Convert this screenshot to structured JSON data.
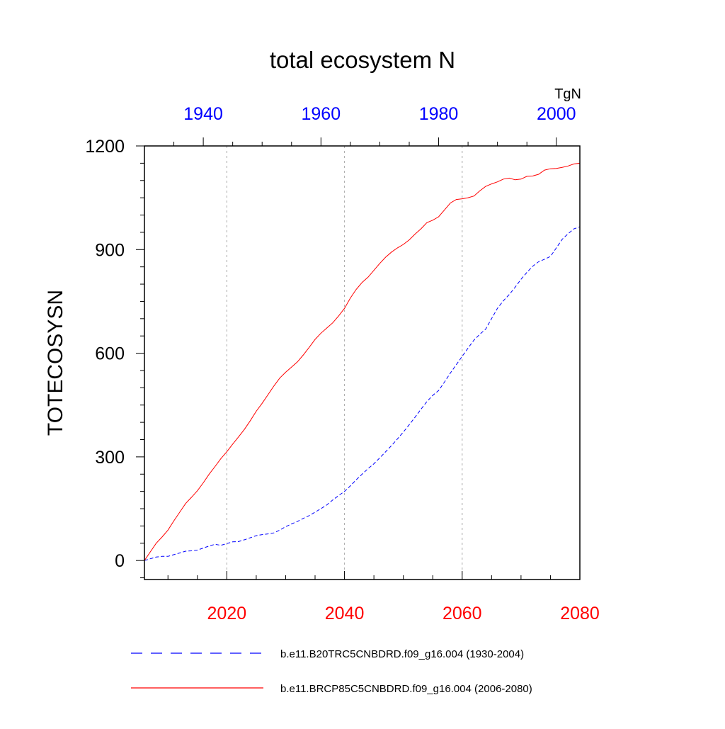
{
  "chart_data": {
    "type": "line",
    "title": "total ecosystem N",
    "units_label": "TgN",
    "ylabel": "TOTECOSYSN",
    "ylim": [
      -55,
      1200
    ],
    "y_ticks": [
      0,
      300,
      600,
      900,
      1200
    ],
    "y_minor_step": 50,
    "grid": "dotted vertical at major bottom-axis ticks",
    "bottom_axis": {
      "xlim": [
        2006,
        2080
      ],
      "ticks": [
        2020,
        2040,
        2060,
        2080
      ],
      "minor_step": 5,
      "color": "#ff0000"
    },
    "top_axis": {
      "xlim": [
        1930,
        2004
      ],
      "ticks": [
        1940,
        1960,
        1980,
        2000
      ],
      "minor_step": 5,
      "color": "#0000ff"
    },
    "series": [
      {
        "name": "b.e11.B20TRC5CNBDRD.f09_g16.004 (1930-2004)",
        "axis": "top",
        "color": "#0000ff",
        "style": "dashed",
        "x": [
          1930,
          1931,
          1932,
          1933,
          1934,
          1935,
          1936,
          1937,
          1938,
          1939,
          1940,
          1941,
          1942,
          1943,
          1944,
          1945,
          1946,
          1947,
          1948,
          1949,
          1950,
          1951,
          1952,
          1953,
          1954,
          1955,
          1956,
          1957,
          1958,
          1959,
          1960,
          1961,
          1962,
          1963,
          1964,
          1965,
          1966,
          1967,
          1968,
          1969,
          1970,
          1971,
          1972,
          1973,
          1974,
          1975,
          1976,
          1977,
          1978,
          1979,
          1980,
          1981,
          1982,
          1983,
          1984,
          1985,
          1986,
          1987,
          1988,
          1989,
          1990,
          1991,
          1992,
          1993,
          1994,
          1995,
          1996,
          1997,
          1998,
          1999,
          2000,
          2001,
          2002,
          2003,
          2004
        ],
        "y": [
          0,
          5,
          10,
          12,
          12,
          17,
          22,
          27,
          28,
          30,
          36,
          42,
          47,
          44,
          49,
          54,
          55,
          60,
          66,
          72,
          75,
          77,
          80,
          88,
          98,
          106,
          113,
          122,
          130,
          140,
          150,
          161,
          175,
          188,
          200,
          216,
          234,
          250,
          266,
          280,
          297,
          315,
          333,
          352,
          372,
          393,
          415,
          438,
          460,
          478,
          492,
          517,
          543,
          567,
          591,
          615,
          638,
          655,
          670,
          700,
          730,
          752,
          770,
          791,
          814,
          834,
          852,
          865,
          872,
          880,
          905,
          930,
          946,
          960,
          966
        ]
      },
      {
        "name": "b.e11.BRCP85C5CNBDRD.f09_g16.004 (2006-2080)",
        "axis": "bottom",
        "color": "#ff0000",
        "style": "solid",
        "x": [
          2006,
          2007,
          2008,
          2009,
          2010,
          2011,
          2012,
          2013,
          2014,
          2015,
          2016,
          2017,
          2018,
          2019,
          2020,
          2021,
          2022,
          2023,
          2024,
          2025,
          2026,
          2027,
          2028,
          2029,
          2030,
          2031,
          2032,
          2033,
          2034,
          2035,
          2036,
          2037,
          2038,
          2039,
          2040,
          2041,
          2042,
          2043,
          2044,
          2045,
          2046,
          2047,
          2048,
          2049,
          2050,
          2051,
          2052,
          2053,
          2054,
          2055,
          2056,
          2057,
          2058,
          2059,
          2060,
          2061,
          2062,
          2063,
          2064,
          2065,
          2066,
          2067,
          2068,
          2069,
          2070,
          2071,
          2072,
          2073,
          2074,
          2075,
          2076,
          2077,
          2078,
          2079,
          2080
        ],
        "y": [
          0,
          25,
          50,
          68,
          88,
          115,
          140,
          165,
          183,
          202,
          225,
          250,
          272,
          295,
          315,
          337,
          358,
          380,
          405,
          432,
          455,
          480,
          505,
          528,
          545,
          560,
          575,
          595,
          617,
          640,
          658,
          673,
          688,
          708,
          730,
          760,
          785,
          805,
          820,
          840,
          860,
          878,
          893,
          905,
          915,
          928,
          945,
          960,
          978,
          985,
          995,
          1015,
          1035,
          1045,
          1047,
          1050,
          1055,
          1070,
          1083,
          1090,
          1096,
          1104,
          1107,
          1102,
          1104,
          1112,
          1113,
          1118,
          1130,
          1134,
          1135,
          1138,
          1142,
          1148,
          1150
        ]
      }
    ]
  }
}
